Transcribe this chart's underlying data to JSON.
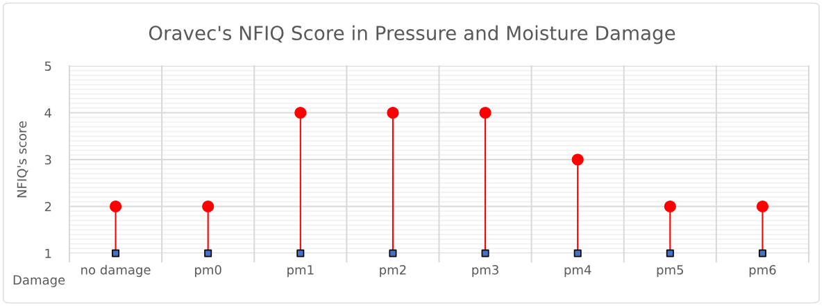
{
  "chart_data": {
    "type": "lollipop",
    "title": "Oravec's NFIQ Score in Pressure and Moisture Damage",
    "xlabel": "Damage",
    "ylabel": "NFIQ's score",
    "categories": [
      "no damage",
      "pm0",
      "pm1",
      "pm2",
      "pm3",
      "pm4",
      "pm5",
      "pm6"
    ],
    "series": [
      {
        "color": "#ff0000",
        "values": [
          2,
          2,
          4,
          4,
          4,
          3,
          2,
          2
        ],
        "marker": "circle"
      },
      {
        "type": "scatter",
        "color": "#4472c4",
        "values": [
          1,
          1,
          1,
          1,
          1,
          1,
          1,
          1
        ],
        "marker": "square"
      }
    ],
    "ylim": [
      1,
      5
    ],
    "yticks": [
      1,
      2,
      3,
      4,
      5
    ],
    "grid": true,
    "legend": false
  }
}
